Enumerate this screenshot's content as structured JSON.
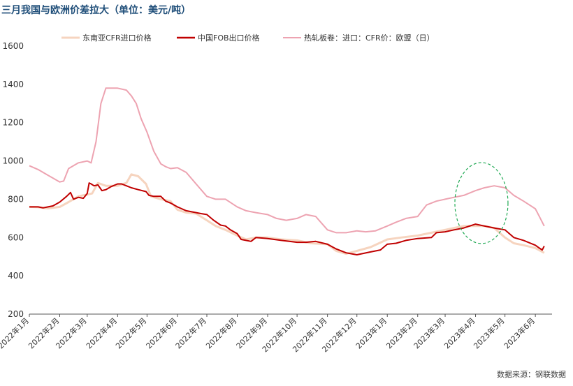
{
  "title": "三月我国与欧洲价差拉大（单位：美元/吨）",
  "source": "数据来源：钢联数据",
  "colors": {
    "sea": "#f6d4bf",
    "china": "#c00000",
    "eu": "#eda3b1",
    "ellipse": "#22aa55",
    "axis": "#555555"
  },
  "chart_data": {
    "type": "line",
    "title": "三月我国与欧洲价差拉大（单位：美元/吨）",
    "ylim": [
      200,
      1600
    ],
    "yticks": [
      200,
      400,
      600,
      800,
      1000,
      1200,
      1400,
      1600
    ],
    "xlim": [
      "2022-01-01",
      "2023-06-18"
    ],
    "xticks": [
      "2022-01-01",
      "2022-02-01",
      "2022-03-01",
      "2022-04-01",
      "2022-05-01",
      "2022-06-01",
      "2022-07-01",
      "2022-08-01",
      "2022-09-01",
      "2022-10-01",
      "2022-11-01",
      "2022-12-01",
      "2023-01-01",
      "2023-02-01",
      "2023-03-01",
      "2023-04-01",
      "2023-05-01",
      "2023-06-01"
    ],
    "xtick_labels": [
      "2022年1月",
      "2022年2月",
      "2022年3月",
      "2022年4月",
      "2022年5月",
      "2022年6月",
      "2022年7月",
      "2022年8月",
      "2022年9月",
      "2022年10月",
      "2022年11月",
      "2022年12月",
      "2023年1月",
      "2023年2月",
      "2023年3月",
      "2023年4月",
      "2023年5月",
      "2023年6月"
    ],
    "legend_position": "top",
    "grid": false,
    "annotation": "dashed ellipse highlighting Mar–Apr 2023 spread",
    "series": [
      {
        "name": "东南亚CFR进口价格",
        "x": [
          "2022-01-01",
          "2022-01-10",
          "2022-01-20",
          "2022-02-01",
          "2022-02-10",
          "2022-02-20",
          "2022-03-01",
          "2022-03-06",
          "2022-03-12",
          "2022-03-20",
          "2022-04-01",
          "2022-04-10",
          "2022-04-15",
          "2022-04-22",
          "2022-04-30",
          "2022-05-05",
          "2022-05-15",
          "2022-05-25",
          "2022-06-01",
          "2022-06-10",
          "2022-06-20",
          "2022-07-01",
          "2022-07-10",
          "2022-07-20",
          "2022-08-01",
          "2022-08-10",
          "2022-08-20",
          "2022-09-01",
          "2022-09-15",
          "2022-10-01",
          "2022-10-15",
          "2022-11-01",
          "2022-11-10",
          "2022-11-20",
          "2022-12-01",
          "2022-12-15",
          "2023-01-01",
          "2023-01-15",
          "2023-02-01",
          "2023-02-15",
          "2023-03-01",
          "2023-03-10",
          "2023-03-20",
          "2023-04-01",
          "2023-04-10",
          "2023-04-20",
          "2023-05-01",
          "2023-05-10",
          "2023-05-20",
          "2023-06-01",
          "2023-06-10"
        ],
        "values": [
          760,
          758,
          752,
          760,
          785,
          815,
          825,
          830,
          885,
          870,
          870,
          885,
          930,
          920,
          880,
          815,
          800,
          790,
          745,
          730,
          725,
          690,
          660,
          640,
          610,
          590,
          600,
          600,
          590,
          585,
          570,
          565,
          530,
          515,
          530,
          550,
          590,
          600,
          610,
          625,
          640,
          650,
          660,
          660,
          660,
          650,
          600,
          570,
          560,
          545,
          520
        ]
      },
      {
        "name": "中国FOB出口价格",
        "x": [
          "2022-01-01",
          "2022-01-10",
          "2022-01-15",
          "2022-01-20",
          "2022-01-25",
          "2022-02-01",
          "2022-02-08",
          "2022-02-12",
          "2022-02-15",
          "2022-02-20",
          "2022-02-25",
          "2022-03-01",
          "2022-03-03",
          "2022-03-05",
          "2022-03-08",
          "2022-03-12",
          "2022-03-16",
          "2022-03-20",
          "2022-03-25",
          "2022-04-01",
          "2022-04-05",
          "2022-04-10",
          "2022-04-15",
          "2022-04-22",
          "2022-04-30",
          "2022-05-03",
          "2022-05-08",
          "2022-05-15",
          "2022-05-20",
          "2022-05-25",
          "2022-06-01",
          "2022-06-10",
          "2022-06-20",
          "2022-06-25",
          "2022-07-01",
          "2022-07-08",
          "2022-07-15",
          "2022-07-20",
          "2022-07-25",
          "2022-08-01",
          "2022-08-05",
          "2022-08-10",
          "2022-08-15",
          "2022-08-20",
          "2022-09-01",
          "2022-09-15",
          "2022-10-01",
          "2022-10-10",
          "2022-10-20",
          "2022-11-01",
          "2022-11-10",
          "2022-11-20",
          "2022-12-01",
          "2022-12-15",
          "2022-12-25",
          "2023-01-01",
          "2023-01-10",
          "2023-01-20",
          "2023-02-01",
          "2023-02-15",
          "2023-02-20",
          "2023-03-01",
          "2023-03-10",
          "2023-03-20",
          "2023-04-01",
          "2023-04-10",
          "2023-04-20",
          "2023-04-25",
          "2023-05-01",
          "2023-05-10",
          "2023-05-20",
          "2023-06-01",
          "2023-06-05",
          "2023-06-08",
          "2023-06-10"
        ],
        "values": [
          760,
          760,
          755,
          760,
          765,
          785,
          815,
          835,
          800,
          810,
          805,
          830,
          885,
          880,
          870,
          875,
          845,
          850,
          865,
          880,
          880,
          870,
          860,
          850,
          840,
          820,
          815,
          815,
          790,
          780,
          760,
          740,
          730,
          725,
          720,
          690,
          665,
          660,
          640,
          620,
          590,
          585,
          580,
          600,
          595,
          585,
          575,
          575,
          580,
          565,
          540,
          520,
          510,
          525,
          535,
          565,
          570,
          585,
          595,
          600,
          625,
          630,
          640,
          650,
          670,
          660,
          650,
          645,
          640,
          600,
          585,
          560,
          545,
          535,
          555
        ]
      },
      {
        "name": "热轧板卷：进口：CFR价：欧盟（日）",
        "x": [
          "2022-01-01",
          "2022-01-10",
          "2022-01-20",
          "2022-02-01",
          "2022-02-05",
          "2022-02-10",
          "2022-02-20",
          "2022-03-01",
          "2022-03-05",
          "2022-03-10",
          "2022-03-15",
          "2022-03-20",
          "2022-03-25",
          "2022-04-01",
          "2022-04-10",
          "2022-04-15",
          "2022-04-20",
          "2022-04-25",
          "2022-05-01",
          "2022-05-08",
          "2022-05-15",
          "2022-05-20",
          "2022-05-25",
          "2022-06-01",
          "2022-06-10",
          "2022-06-20",
          "2022-07-01",
          "2022-07-10",
          "2022-07-20",
          "2022-08-01",
          "2022-08-10",
          "2022-08-20",
          "2022-09-01",
          "2022-09-10",
          "2022-09-20",
          "2022-10-01",
          "2022-10-10",
          "2022-10-20",
          "2022-11-01",
          "2022-11-10",
          "2022-11-20",
          "2022-12-01",
          "2022-12-10",
          "2022-12-20",
          "2023-01-01",
          "2023-01-10",
          "2023-01-20",
          "2023-02-01",
          "2023-02-10",
          "2023-02-20",
          "2023-03-01",
          "2023-03-10",
          "2023-03-20",
          "2023-04-01",
          "2023-04-10",
          "2023-04-20",
          "2023-05-01",
          "2023-05-10",
          "2023-05-20",
          "2023-06-01",
          "2023-06-05",
          "2023-06-10"
        ],
        "values": [
          975,
          955,
          925,
          890,
          895,
          960,
          990,
          1000,
          990,
          1100,
          1300,
          1380,
          1380,
          1380,
          1370,
          1340,
          1300,
          1220,
          1150,
          1050,
          985,
          970,
          960,
          965,
          940,
          880,
          815,
          800,
          800,
          760,
          740,
          730,
          720,
          700,
          690,
          700,
          720,
          710,
          640,
          625,
          625,
          635,
          630,
          635,
          660,
          680,
          700,
          710,
          770,
          790,
          800,
          810,
          820,
          845,
          860,
          870,
          860,
          820,
          790,
          750,
          710,
          660
        ]
      }
    ]
  }
}
